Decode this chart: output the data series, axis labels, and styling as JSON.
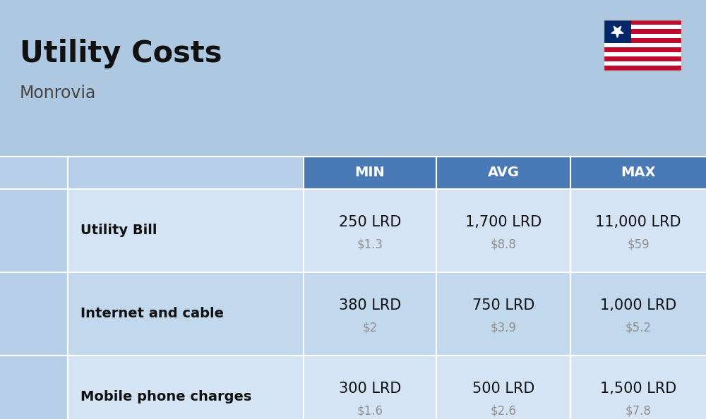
{
  "title": "Utility Costs",
  "subtitle": "Monrovia",
  "background_color": "#adc8e0",
  "header_bg_color": "#4a7ab5",
  "header_text_color": "#ffffff",
  "row_bg_color_1": "#d4e4f4",
  "row_bg_color_2": "#c2d8ed",
  "icon_col_bg": "#b8cfea",
  "col_headers": [
    "MIN",
    "AVG",
    "MAX"
  ],
  "rows": [
    {
      "label": "Utility Bill",
      "min_lrd": "250 LRD",
      "min_usd": "$1.3",
      "avg_lrd": "1,700 LRD",
      "avg_usd": "$8.8",
      "max_lrd": "11,000 LRD",
      "max_usd": "$59"
    },
    {
      "label": "Internet and cable",
      "min_lrd": "380 LRD",
      "min_usd": "$2",
      "avg_lrd": "750 LRD",
      "avg_usd": "$3.9",
      "max_lrd": "1,000 LRD",
      "max_usd": "$5.2"
    },
    {
      "label": "Mobile phone charges",
      "min_lrd": "300 LRD",
      "min_usd": "$1.6",
      "avg_lrd": "500 LRD",
      "avg_usd": "$2.6",
      "max_lrd": "1,500 LRD",
      "max_usd": "$7.8"
    }
  ],
  "flag_red": "#BF0A30",
  "flag_white": "#FFFFFF",
  "flag_blue": "#002868",
  "title_fontsize": 30,
  "subtitle_fontsize": 17,
  "header_fontsize": 14,
  "label_fontsize": 14,
  "value_fontsize": 15,
  "usd_fontsize": 12,
  "usd_color": "#909090"
}
